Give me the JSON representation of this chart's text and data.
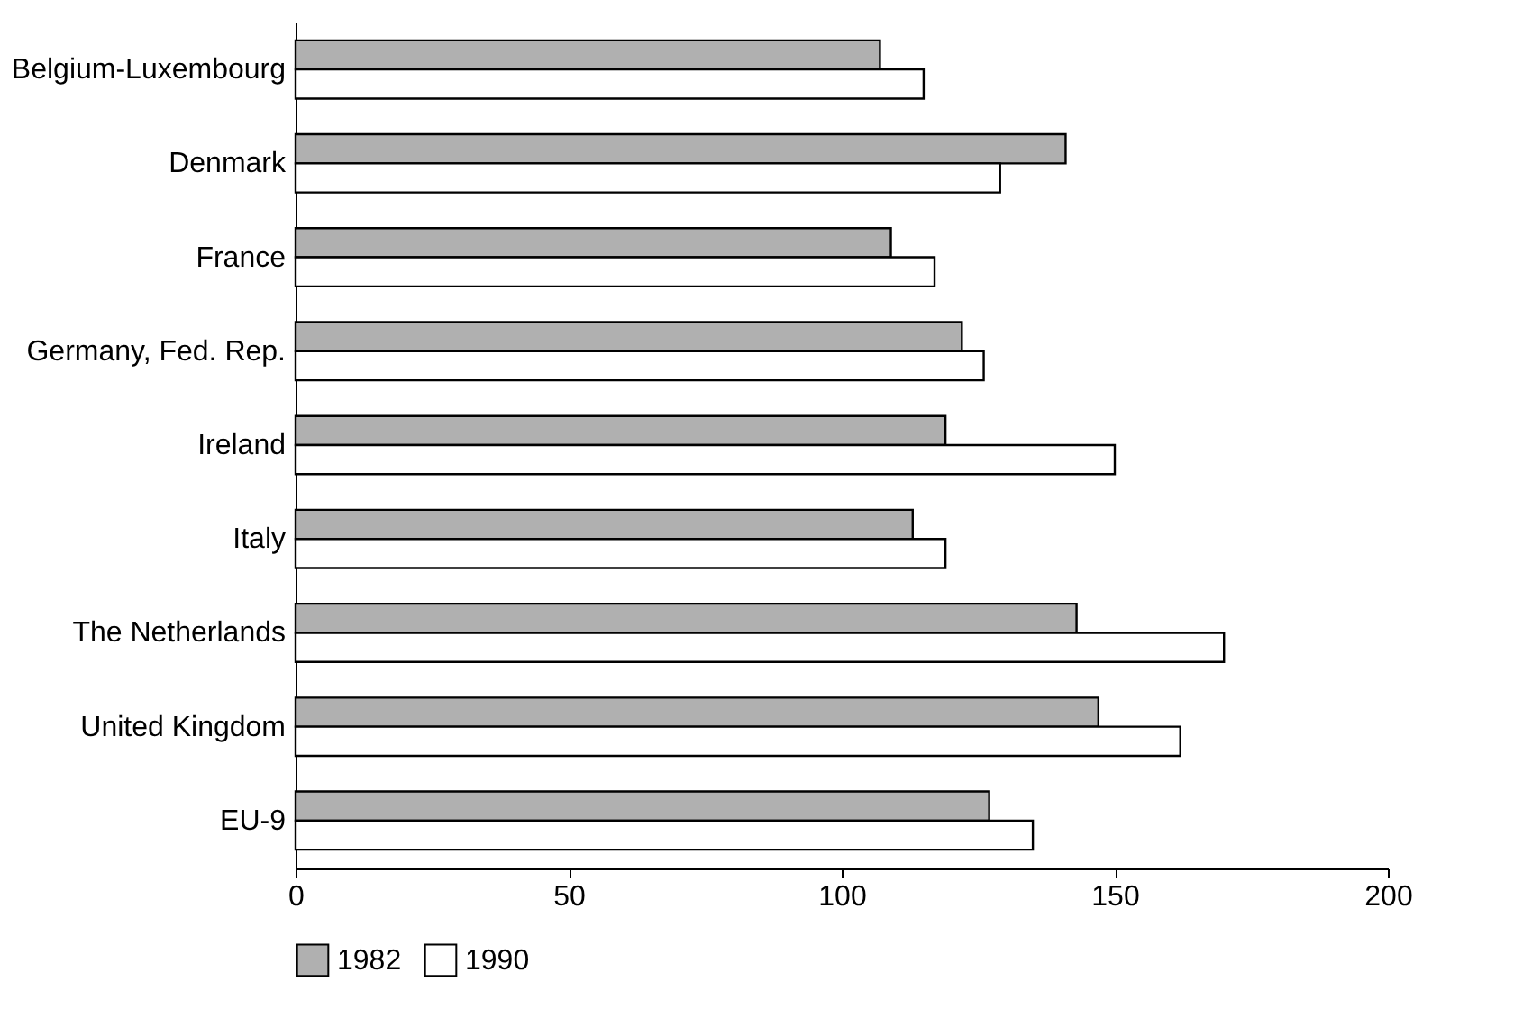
{
  "chart_data": {
    "type": "bar",
    "orientation": "horizontal",
    "categories": [
      "Belgium-Luxembourg",
      "Denmark",
      "France",
      "Germany, Fed. Rep.",
      "Ireland",
      "Italy",
      "The Netherlands",
      "United Kingdom",
      "EU-9"
    ],
    "series": [
      {
        "name": "1982",
        "color": "#b0b0b0",
        "values": [
          107,
          141,
          109,
          122,
          119,
          113,
          143,
          147,
          127
        ]
      },
      {
        "name": "1990",
        "color": "#ffffff",
        "values": [
          115,
          129,
          117,
          126,
          150,
          119,
          170,
          162,
          135
        ]
      }
    ],
    "xlim": [
      0,
      200
    ],
    "xticks": [
      0,
      50,
      100,
      150,
      200
    ],
    "grid": false,
    "legend": "bottom"
  }
}
